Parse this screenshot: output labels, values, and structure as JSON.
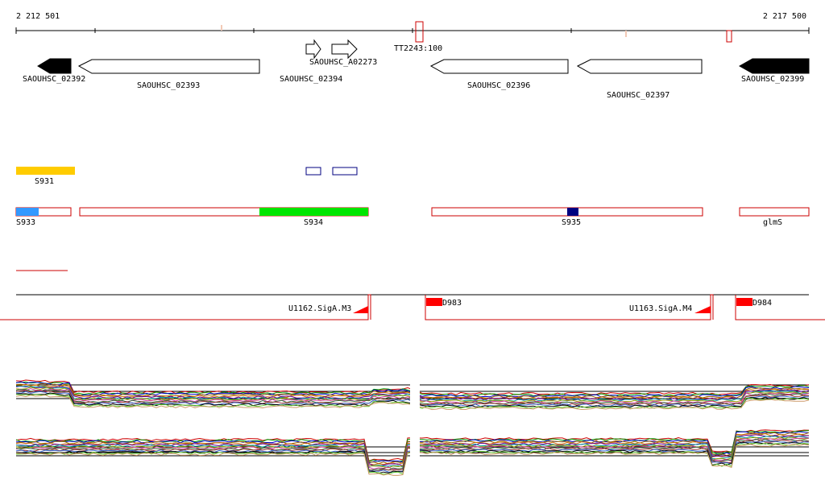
{
  "ruler": {
    "start": "2 212 501",
    "end": "2 217 500"
  },
  "genes": [
    {
      "id": "SAOUHSC_02392",
      "label": "SAOUHSC_02392",
      "strand": "-",
      "filled": true
    },
    {
      "id": "SAOUHSC_02393",
      "label": "SAOUHSC_02393",
      "strand": "-",
      "filled": false
    },
    {
      "id": "SAOUHSC_02394a",
      "label": "SAOUHSC_02394",
      "strand": "+",
      "filled": false
    },
    {
      "id": "SAOUHSC_02394b",
      "label": "SAOUHSC_A02273",
      "strand": "+",
      "filled": false
    },
    {
      "id": "TT2243",
      "label": "TT2243:100",
      "strand": "",
      "filled": false
    },
    {
      "id": "SAOUHSC_02396",
      "label": "SAOUHSC_02396",
      "strand": "-",
      "filled": false
    },
    {
      "id": "SAOUHSC_02397",
      "label": "SAOUHSC_02397",
      "strand": "-",
      "filled": false
    },
    {
      "id": "SAOUHSC_02399",
      "label": "SAOUHSC_02399",
      "strand": "-",
      "filled": true
    }
  ],
  "features": {
    "s931": "S931",
    "s933": "S933",
    "s934": "S934",
    "s935": "S935",
    "glms": "glmS"
  },
  "promoters": {
    "u1162": "U1162.SigA.M3",
    "d983": "D983",
    "u1163": "U1163.SigA.M4",
    "d984": "D984"
  },
  "colors": {
    "s931": "#ffcc00",
    "s933": "#3399ff",
    "s934": "#00e600",
    "s935": "#000080",
    "outline": "#cc0000",
    "gene_fill": "#000000"
  }
}
